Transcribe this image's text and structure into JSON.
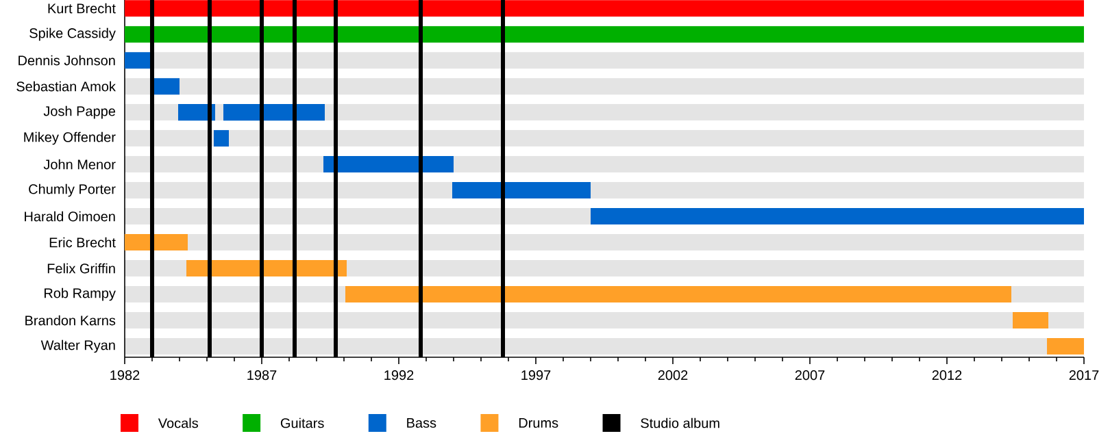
{
  "chart_data": {
    "type": "bar",
    "orientation": "horizontal",
    "categories": [
      "Kurt Brecht",
      "Spike Cassidy",
      "Dennis Johnson",
      "Sebastian Amok",
      "Josh Pappe",
      "Mikey Offender",
      "John Menor",
      "Chumly Porter",
      "Harald Oimoen",
      "Eric Brecht",
      "Felix Griffin",
      "Rob Rampy",
      "Brandon Karns",
      "Walter Ryan"
    ],
    "series": [
      {
        "name": "Vocals",
        "color": "#ff0000",
        "base": [
          1982,
          null,
          null,
          null,
          null,
          null,
          null,
          null,
          null,
          null,
          null,
          null,
          null,
          null
        ],
        "values": [
          35,
          null,
          null,
          null,
          null,
          null,
          null,
          null,
          null,
          null,
          null,
          null,
          null,
          null
        ]
      },
      {
        "name": "Guitars",
        "color": "#00b000",
        "base": [
          null,
          1982,
          null,
          null,
          null,
          null,
          null,
          null,
          null,
          null,
          null,
          null,
          null,
          null
        ],
        "values": [
          null,
          35,
          null,
          null,
          null,
          null,
          null,
          null,
          null,
          null,
          null,
          null,
          null,
          null
        ]
      },
      {
        "name": "Bass",
        "color": "#0066cc",
        "base": [
          null,
          null,
          1982,
          1983,
          1983.95,
          1985.25,
          1989.25,
          1993.95,
          1999,
          null,
          null,
          null,
          null,
          null
        ],
        "values": [
          null,
          null,
          1.0,
          1.0,
          1.35,
          0.55,
          4.75,
          5.05,
          18,
          null,
          null,
          null,
          null,
          null
        ]
      },
      {
        "color": "#0066cc",
        "base": [
          null,
          null,
          null,
          null,
          1985.6,
          null,
          null,
          null,
          null,
          null,
          null,
          null,
          null,
          null
        ],
        "values": [
          null,
          null,
          null,
          null,
          3.7,
          null,
          null,
          null,
          null,
          null,
          null,
          null,
          null,
          null
        ]
      },
      {
        "name": "Drums",
        "color": "#ffa028",
        "base": [
          null,
          null,
          null,
          null,
          null,
          null,
          null,
          null,
          null,
          1982,
          1984.25,
          1990.05,
          2014.4,
          2015.65
        ],
        "values": [
          null,
          null,
          null,
          null,
          null,
          null,
          null,
          null,
          null,
          2.3,
          5.85,
          24.3,
          1.3,
          1.35
        ]
      }
    ],
    "xlim": [
      1982,
      2017
    ],
    "xticks": [
      1982,
      1987,
      1992,
      1997,
      2002,
      2007,
      2012,
      2017
    ],
    "grid": "y",
    "legend": "bottom",
    "ref_lines": [
      {
        "axis": "x",
        "value": 1983,
        "color": "#000000",
        "label": "Studio album"
      },
      {
        "axis": "x",
        "value": 1985.1,
        "color": "#000000"
      },
      {
        "axis": "x",
        "value": 1987,
        "color": "#000000"
      },
      {
        "axis": "x",
        "value": 1988.2,
        "color": "#000000"
      },
      {
        "axis": "x",
        "value": 1989.7,
        "color": "#000000"
      },
      {
        "axis": "x",
        "value": 1992.8,
        "color": "#000000"
      },
      {
        "axis": "x",
        "value": 1995.8,
        "color": "#000000"
      }
    ]
  }
}
